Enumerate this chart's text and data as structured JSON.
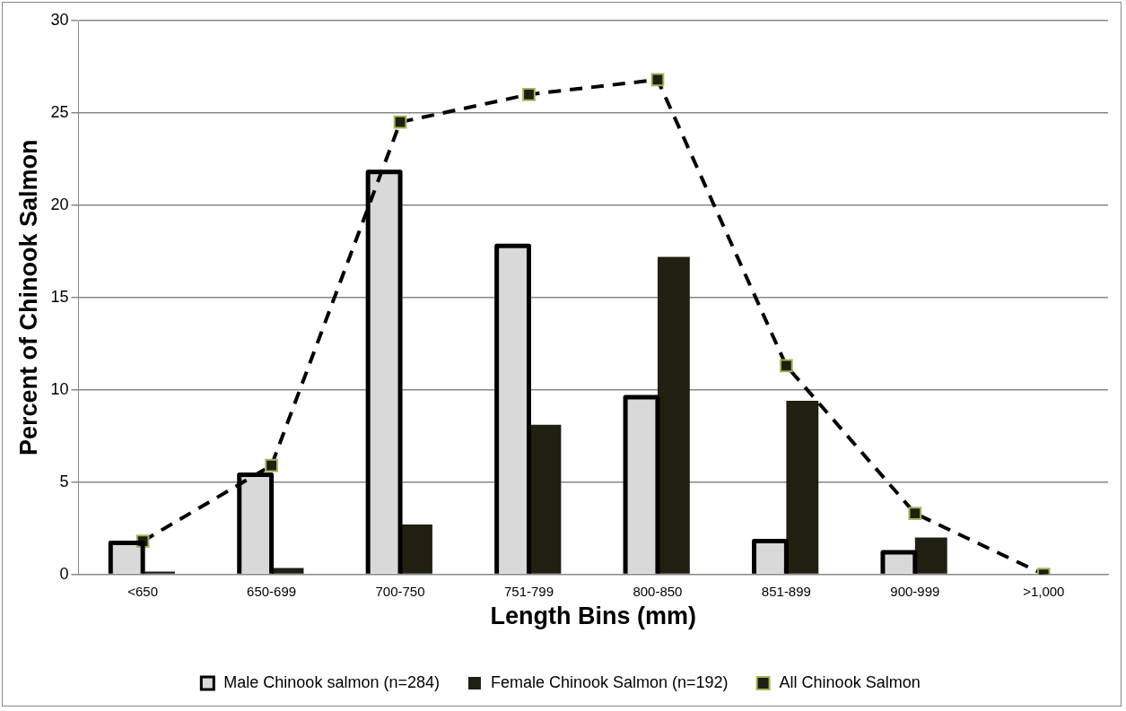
{
  "chart_data": {
    "type": "bar",
    "xlabel": "Length Bins (mm)",
    "ylabel": "Percent of Chinook Salmon",
    "categories": [
      "<650",
      "650-699",
      "700-750",
      "751-799",
      "800-850",
      "851-899",
      "900-999",
      ">1,000"
    ],
    "series": [
      {
        "name": "Male Chinook salmon (n=284)",
        "color": "#d9d9d9",
        "values": [
          1.7,
          5.4,
          21.8,
          17.8,
          9.6,
          1.8,
          1.2,
          0
        ]
      },
      {
        "name": "Female Chinook Salmon (n=192)",
        "color": "#211e12",
        "values": [
          0.15,
          0.35,
          2.7,
          8.1,
          17.2,
          9.4,
          2.0,
          0
        ]
      },
      {
        "name": "All Chinook Salmon",
        "type": "line",
        "color": "#000000",
        "line_style": "dashed",
        "marker": "square",
        "values": [
          1.8,
          5.9,
          24.5,
          26.0,
          26.8,
          11.3,
          3.3,
          0
        ]
      }
    ],
    "ylim": [
      0,
      30
    ],
    "yticks": [
      0,
      5,
      10,
      15,
      20,
      25,
      30
    ],
    "grid": "y",
    "legend": "bottom"
  }
}
